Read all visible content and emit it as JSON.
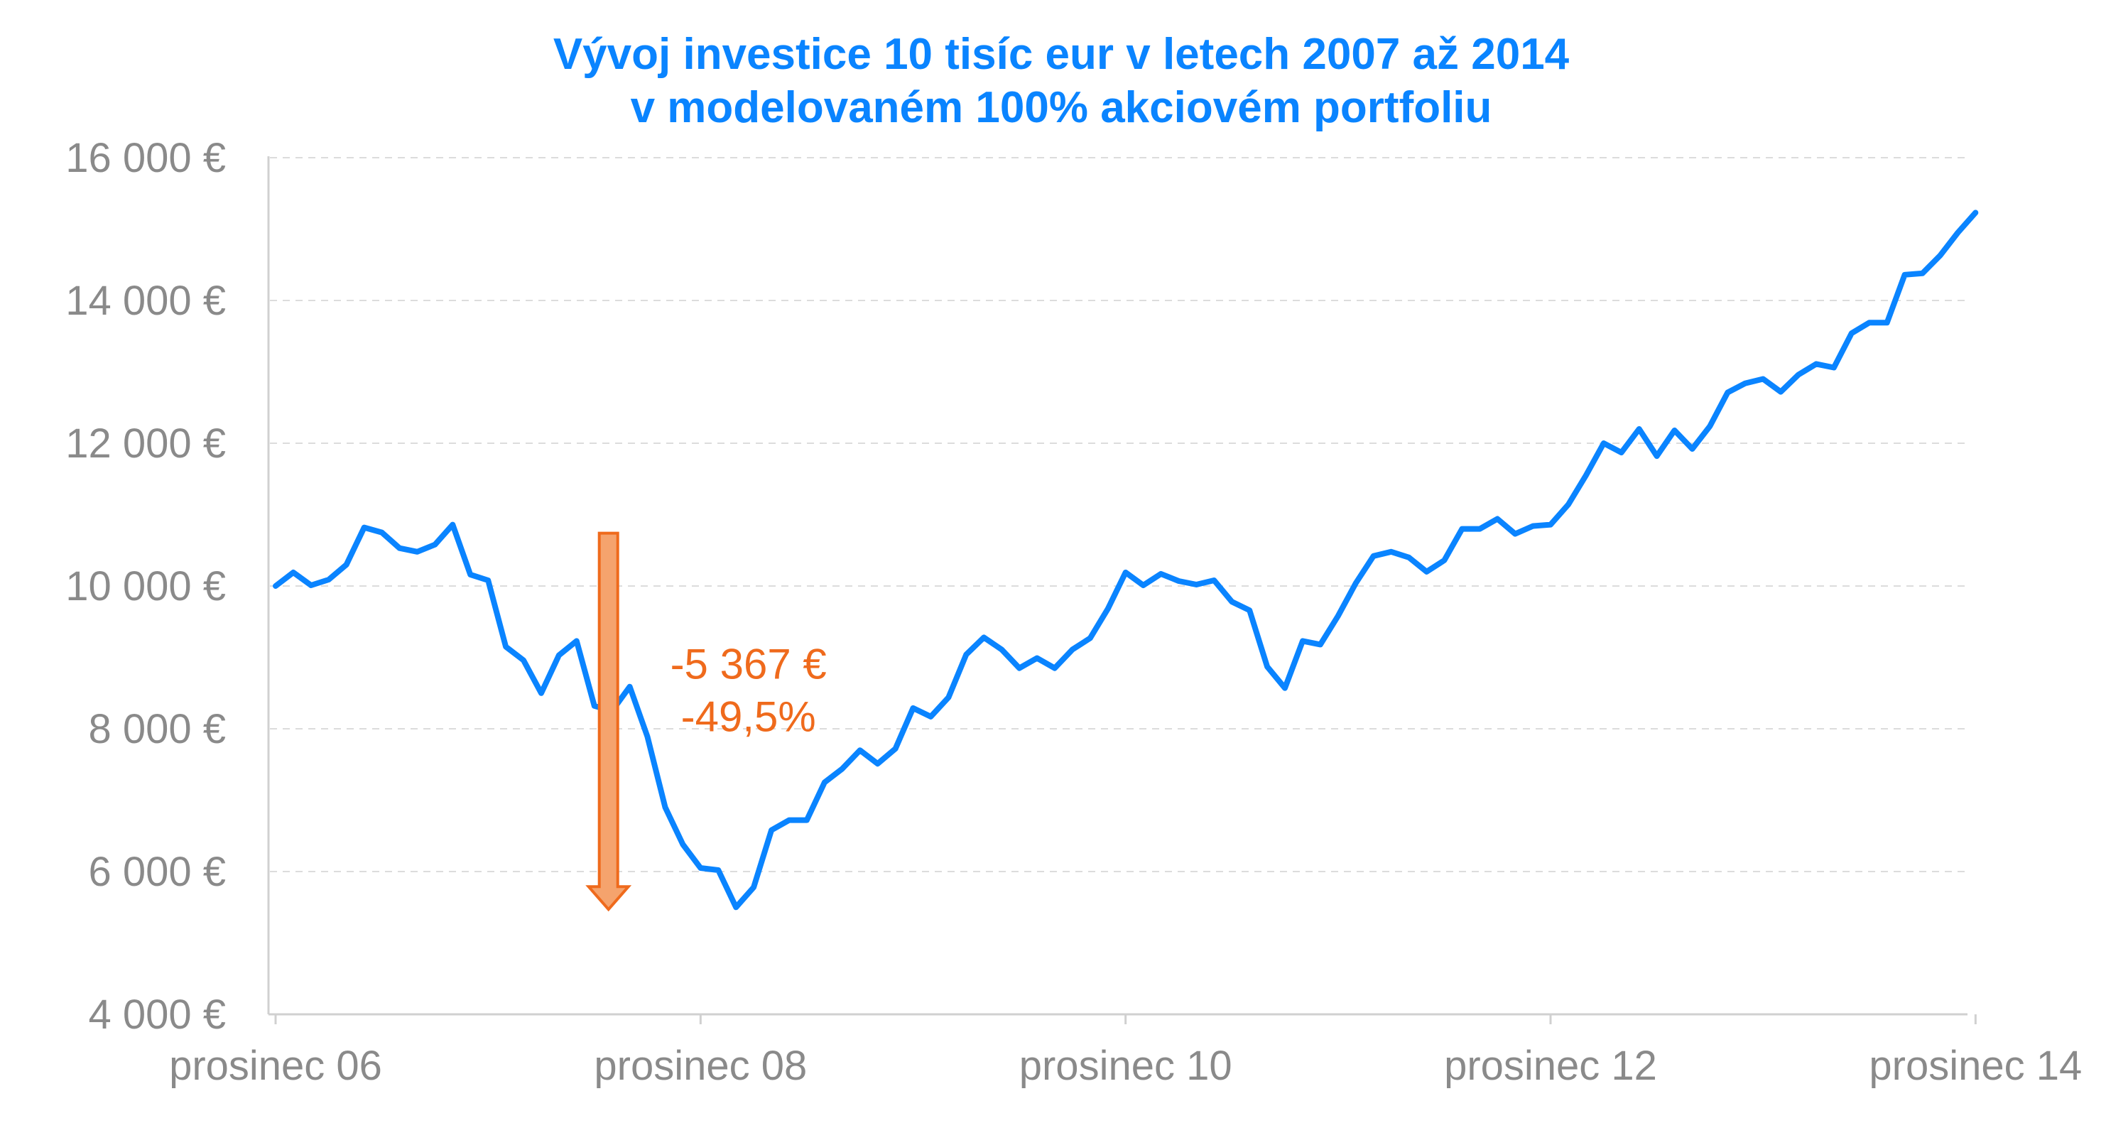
{
  "colors": {
    "accent": "#0a84ff",
    "annotation": "#ef6a1c",
    "annotation_fill": "#f5a36d",
    "tick_text": "#8a8a8a",
    "grid": "#dcdcdc"
  },
  "chart_data": {
    "type": "line",
    "title_lines": [
      "Vývoj investice 10 tisíc eur v letech 2007 až 2014",
      "v modelovaném 100% akciovém portfoliu"
    ],
    "xlabel": "",
    "ylabel": "",
    "ylim": [
      4000,
      16000
    ],
    "yticks": [
      16000,
      14000,
      12000,
      10000,
      8000,
      6000,
      4000
    ],
    "ytick_labels": [
      "16 000 €",
      "14 000 €",
      "12 000 €",
      "10 000 €",
      "8 000 €",
      "6 000 €",
      "4 000 €"
    ],
    "xticks": [
      0,
      24,
      48,
      72,
      96
    ],
    "xtick_labels": [
      "prosinec 06",
      "prosinec 08",
      "prosinec 10",
      "prosinec 12",
      "prosinec 14"
    ],
    "xlim": [
      0,
      97
    ],
    "grid": true,
    "legend": "none",
    "series": [
      {
        "values": [
          10000,
          10190,
          10010,
          10090,
          10300,
          10820,
          10750,
          10530,
          10480,
          10580,
          10860,
          10160,
          10080,
          9150,
          8960,
          8500,
          9030,
          9230,
          8320,
          8250,
          8590,
          7890,
          6900,
          6380,
          6050,
          6020,
          5500,
          5780,
          6580,
          6720,
          6720,
          7250,
          7440,
          7700,
          7510,
          7720,
          8290,
          8170,
          8440,
          9040,
          9280,
          9110,
          8850,
          8990,
          8850,
          9110,
          9270,
          9680,
          10190,
          10010,
          10170,
          10070,
          10020,
          10080,
          9780,
          9660,
          8870,
          8570,
          9230,
          9180,
          9580,
          10040,
          10420,
          10480,
          10400,
          10200,
          10360,
          10800,
          10800,
          10940,
          10730,
          10840,
          10860,
          11140,
          11550,
          12000,
          11870,
          12200,
          11820,
          12180,
          11920,
          12240,
          12710,
          12840,
          12900,
          12720,
          12960,
          13110,
          13060,
          13540,
          13690,
          13690,
          14360,
          14380,
          14630,
          14950,
          15230
        ]
      }
    ],
    "annotations": [
      {
        "type": "arrow-down",
        "x": 18.8,
        "y_from": 10740,
        "y_to": 5470,
        "label_lines": [
          "-5 367 €",
          "-49,5%"
        ],
        "label_x": 26.7,
        "label_y": 8700
      }
    ]
  }
}
